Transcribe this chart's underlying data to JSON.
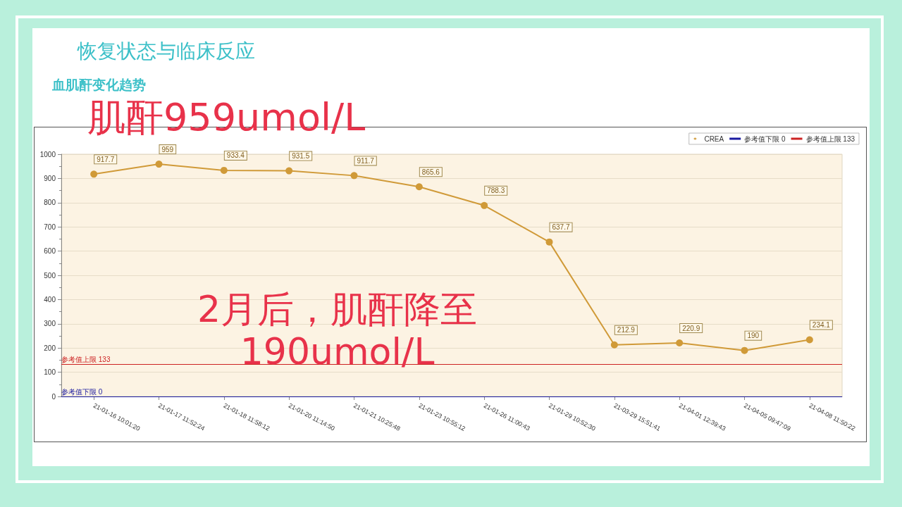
{
  "chart_data": {
    "type": "line",
    "title": "恢复状态与临床反应",
    "subtitle": "血肌酐变化趋势",
    "annotations": [
      "肌酐959umol/L",
      "2月后，肌酐降至\n190umol/L"
    ],
    "categories": [
      "21-01-16 10:01:20",
      "21-01-17 11:52:24",
      "21-01-18 11:58:12",
      "21-01-20 11:14:50",
      "21-01-21 10:25:48",
      "21-01-23 10:55:12",
      "21-01-26 11:00:43",
      "21-01-29 10:52:30",
      "21-03-29 15:51:41",
      "21-04-01 12:39:43",
      "21-04-05 09:47:09",
      "21-04-08 11:50:22"
    ],
    "series": [
      {
        "name": "CREA",
        "color": "#d09a38",
        "values": [
          917.7,
          959,
          933.4,
          931.5,
          911.7,
          865.6,
          788.3,
          637.7,
          212.9,
          220.9,
          190,
          234.1
        ]
      }
    ],
    "ref_lines": [
      {
        "axis": "y",
        "value": 0,
        "label": "参考值下限 0",
        "color": "#1a1aa0"
      },
      {
        "axis": "y",
        "value": 133,
        "label": "参考值上限 133",
        "color": "#cc2222"
      }
    ],
    "data_labels": true,
    "ylim": [
      0,
      1000
    ],
    "yticks": [
      0,
      100,
      200,
      300,
      400,
      500,
      600,
      700,
      800,
      900,
      1000
    ],
    "grid": "y",
    "legend": "top right",
    "marker": "circle",
    "line_style": "solid"
  }
}
